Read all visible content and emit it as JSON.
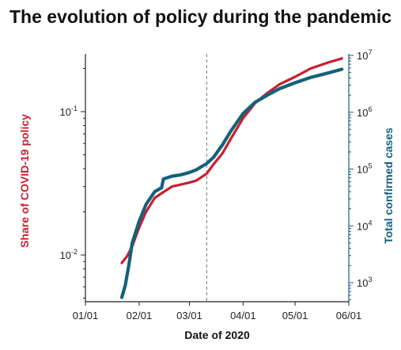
{
  "chart_data": {
    "type": "line",
    "title": "The evolution of policy during the pandemic",
    "xlabel": "Date of 2020",
    "ylabel_left": "Share of COVID-19 policy",
    "ylabel_right": "Total confirmed cases",
    "x_ticks": [
      "01/01",
      "02/01",
      "03/01",
      "04/01",
      "05/01",
      "06/01"
    ],
    "y_left_scale": "log",
    "y_left_ticks": [
      {
        "base": "10",
        "exp": "-2",
        "value": 0.01
      },
      {
        "base": "10",
        "exp": "-1",
        "value": 0.1
      }
    ],
    "y_right_scale": "log",
    "y_right_ticks": [
      {
        "base": "10",
        "exp": "3",
        "value": 1000
      },
      {
        "base": "10",
        "exp": "4",
        "value": 10000
      },
      {
        "base": "10",
        "exp": "5",
        "value": 100000
      },
      {
        "base": "10",
        "exp": "6",
        "value": 1000000
      },
      {
        "base": "10",
        "exp": "7",
        "value": 10000000
      }
    ],
    "vline_date": "2020-03-11",
    "colors": {
      "policy": "#c8202f",
      "cases": "#14617a",
      "left_axis": "#c8202f",
      "right_axis": "#14617a",
      "vline": "#777777"
    },
    "series": [
      {
        "axis": "left",
        "x": [
          "2020-01-22",
          "2020-01-25",
          "2020-01-28",
          "2020-02-01",
          "2020-02-05",
          "2020-02-10",
          "2020-02-15",
          "2020-02-20",
          "2020-02-25",
          "2020-03-01",
          "2020-03-05",
          "2020-03-11",
          "2020-03-15",
          "2020-03-20",
          "2020-03-25",
          "2020-04-01",
          "2020-04-08",
          "2020-04-15",
          "2020-04-22",
          "2020-05-01",
          "2020-05-10",
          "2020-05-20",
          "2020-05-28"
        ],
        "values": [
          0.0088,
          0.0098,
          0.0115,
          0.0155,
          0.02,
          0.025,
          0.0275,
          0.03,
          0.031,
          0.032,
          0.033,
          0.037,
          0.043,
          0.051,
          0.065,
          0.09,
          0.115,
          0.135,
          0.155,
          0.175,
          0.2,
          0.22,
          0.235
        ]
      },
      {
        "axis": "right",
        "x": [
          "2020-01-22",
          "2020-01-24",
          "2020-01-26",
          "2020-01-28",
          "2020-02-01",
          "2020-02-05",
          "2020-02-10",
          "2020-02-14",
          "2020-02-15",
          "2020-02-20",
          "2020-02-25",
          "2020-03-01",
          "2020-03-05",
          "2020-03-11",
          "2020-03-15",
          "2020-03-20",
          "2020-03-25",
          "2020-04-01",
          "2020-04-08",
          "2020-04-15",
          "2020-04-22",
          "2020-05-01",
          "2020-05-10",
          "2020-05-20",
          "2020-05-28"
        ],
        "values": [
          550,
          900,
          2000,
          5000,
          12000,
          24000,
          40000,
          47000,
          67000,
          75000,
          79000,
          87000,
          97000,
          125000,
          162000,
          265000,
          470000,
          950000,
          1500000,
          2000000,
          2600000,
          3300000,
          4100000,
          4900000,
          5700000
        ]
      }
    ]
  }
}
